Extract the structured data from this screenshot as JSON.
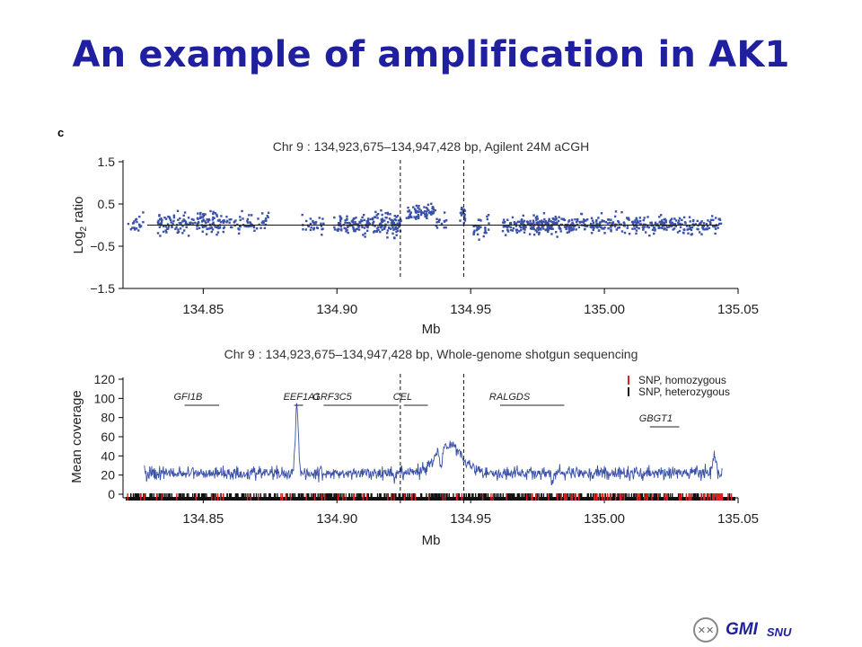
{
  "slide": {
    "title": "An example of amplification in AK1",
    "footer": {
      "logo_icon": "chromosome-logo-icon",
      "org": "GMI",
      "sub": "SNU"
    }
  },
  "chart_data": [
    {
      "type": "scatter",
      "panel_label": "c",
      "title": "Chr 9 : 134,923,675–134,947,428 bp, Agilent 24M aCGH",
      "xlabel": "Mb",
      "ylabel": "Log2 ratio",
      "xlim": [
        134.82,
        135.05
      ],
      "ylim": [
        -1.5,
        1.5
      ],
      "xticks": [
        "134.85",
        "134.90",
        "134.95",
        "135.00",
        "135.05"
      ],
      "yticks": [
        "1.5",
        "0.5",
        "−0.5",
        "−1.5"
      ],
      "baseline": 0,
      "region_markers": [
        134.9237,
        134.9474
      ],
      "point_color": "#3a51a8",
      "point_clusters": [
        {
          "x0": 134.822,
          "x1": 134.828,
          "n": 20,
          "mean": 0.0,
          "spread": 0.22
        },
        {
          "x0": 134.833,
          "x1": 134.857,
          "n": 150,
          "mean": 0.05,
          "spread": 0.22
        },
        {
          "x0": 134.857,
          "x1": 134.875,
          "n": 70,
          "mean": 0.05,
          "spread": 0.2
        },
        {
          "x0": 134.887,
          "x1": 134.895,
          "n": 30,
          "mean": 0.0,
          "spread": 0.2
        },
        {
          "x0": 134.899,
          "x1": 134.914,
          "n": 100,
          "mean": 0.0,
          "spread": 0.22
        },
        {
          "x0": 134.914,
          "x1": 134.924,
          "n": 90,
          "mean": 0.05,
          "spread": 0.28
        },
        {
          "x0": 134.926,
          "x1": 134.937,
          "n": 70,
          "mean": 0.28,
          "spread": 0.2
        },
        {
          "x0": 134.937,
          "x1": 134.941,
          "n": 15,
          "mean": 0.05,
          "spread": 0.2
        },
        {
          "x0": 134.946,
          "x1": 134.948,
          "n": 20,
          "mean": 0.3,
          "spread": 0.25
        },
        {
          "x0": 134.951,
          "x1": 134.957,
          "n": 30,
          "mean": -0.05,
          "spread": 0.22
        },
        {
          "x0": 134.962,
          "x1": 134.99,
          "n": 230,
          "mean": 0.0,
          "spread": 0.2
        },
        {
          "x0": 134.99,
          "x1": 135.044,
          "n": 290,
          "mean": 0.0,
          "spread": 0.2
        }
      ]
    },
    {
      "type": "line",
      "title": "Chr 9 : 134,923,675–134,947,428 bp, Whole-genome shotgun sequencing",
      "xlabel": "Mb",
      "ylabel": "Mean coverage",
      "xlim": [
        134.82,
        135.05
      ],
      "ylim": [
        0,
        120
      ],
      "xticks": [
        "134.85",
        "134.90",
        "134.95",
        "135.00",
        "135.05"
      ],
      "yticks": [
        "0",
        "20",
        "40",
        "60",
        "80",
        "100",
        "120"
      ],
      "region_markers": [
        134.9237,
        134.9474
      ],
      "line_color": "#3a51a8",
      "coverage_range": [
        134.828,
        135.044
      ],
      "baseline_coverage": 22,
      "coverage_features": [
        {
          "x": 134.885,
          "height": 72,
          "width": 0.0008
        },
        {
          "x": 134.942,
          "height": 30,
          "width": 0.007
        },
        {
          "x": 134.939,
          "height": -22,
          "width": 0.0006
        },
        {
          "x": 134.9215,
          "height": -10,
          "width": 0.0006
        },
        {
          "x": 134.9805,
          "height": -12,
          "width": 0.0006
        },
        {
          "x": 135.041,
          "height": 20,
          "width": 0.0008
        }
      ],
      "genes": [
        {
          "name": "GFI1B",
          "start": 134.843,
          "end": 134.856
        },
        {
          "name": "EEF1A1",
          "start": 134.884,
          "end": 134.8865
        },
        {
          "name": "GRF3C5",
          "start": 134.895,
          "end": 134.923
        },
        {
          "name": "CEL",
          "start": 134.925,
          "end": 134.934
        },
        {
          "name": "RALGDS",
          "start": 134.961,
          "end": 134.985
        },
        {
          "name": "GBGT1",
          "start": 135.017,
          "end": 135.028
        }
      ],
      "legend": [
        {
          "label": "SNP, homozygous",
          "color": "#e02020"
        },
        {
          "label": "SNP, heterozygous",
          "color": "#111111"
        }
      ],
      "snp_track": {
        "range": [
          134.821,
          135.049
        ],
        "homozygous_count": 120,
        "heterozygous_count": 430
      }
    }
  ]
}
